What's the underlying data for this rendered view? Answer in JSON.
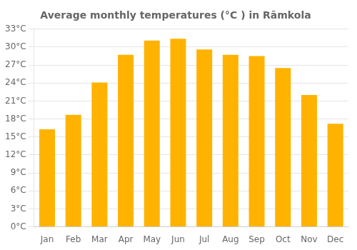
{
  "chart_data": {
    "type": "bar",
    "title": "Average monthly temperatures (°C ) in Rāmkola",
    "categories": [
      "Jan",
      "Feb",
      "Mar",
      "Apr",
      "May",
      "Jun",
      "Jul",
      "Aug",
      "Sep",
      "Oct",
      "Nov",
      "Dec"
    ],
    "values": [
      16.3,
      18.7,
      24.1,
      28.7,
      31.1,
      31.4,
      29.6,
      28.7,
      28.5,
      26.5,
      22.0,
      17.2
    ],
    "color": "#FFB300",
    "ylim": [
      0,
      33
    ],
    "yticks": [
      {
        "value": 0,
        "label": "0°C"
      },
      {
        "value": 3,
        "label": "3°C"
      },
      {
        "value": 6,
        "label": "6°C"
      },
      {
        "value": 9,
        "label": "9°C"
      },
      {
        "value": 12,
        "label": "12°C"
      },
      {
        "value": 15,
        "label": "15°C"
      },
      {
        "value": 18,
        "label": "18°C"
      },
      {
        "value": 21,
        "label": "21°C"
      },
      {
        "value": 24,
        "label": "24°C"
      },
      {
        "value": 27,
        "label": "27°C"
      },
      {
        "value": 30,
        "label": "30°C"
      },
      {
        "value": 33,
        "label": "33°C"
      }
    ],
    "grid": true
  }
}
